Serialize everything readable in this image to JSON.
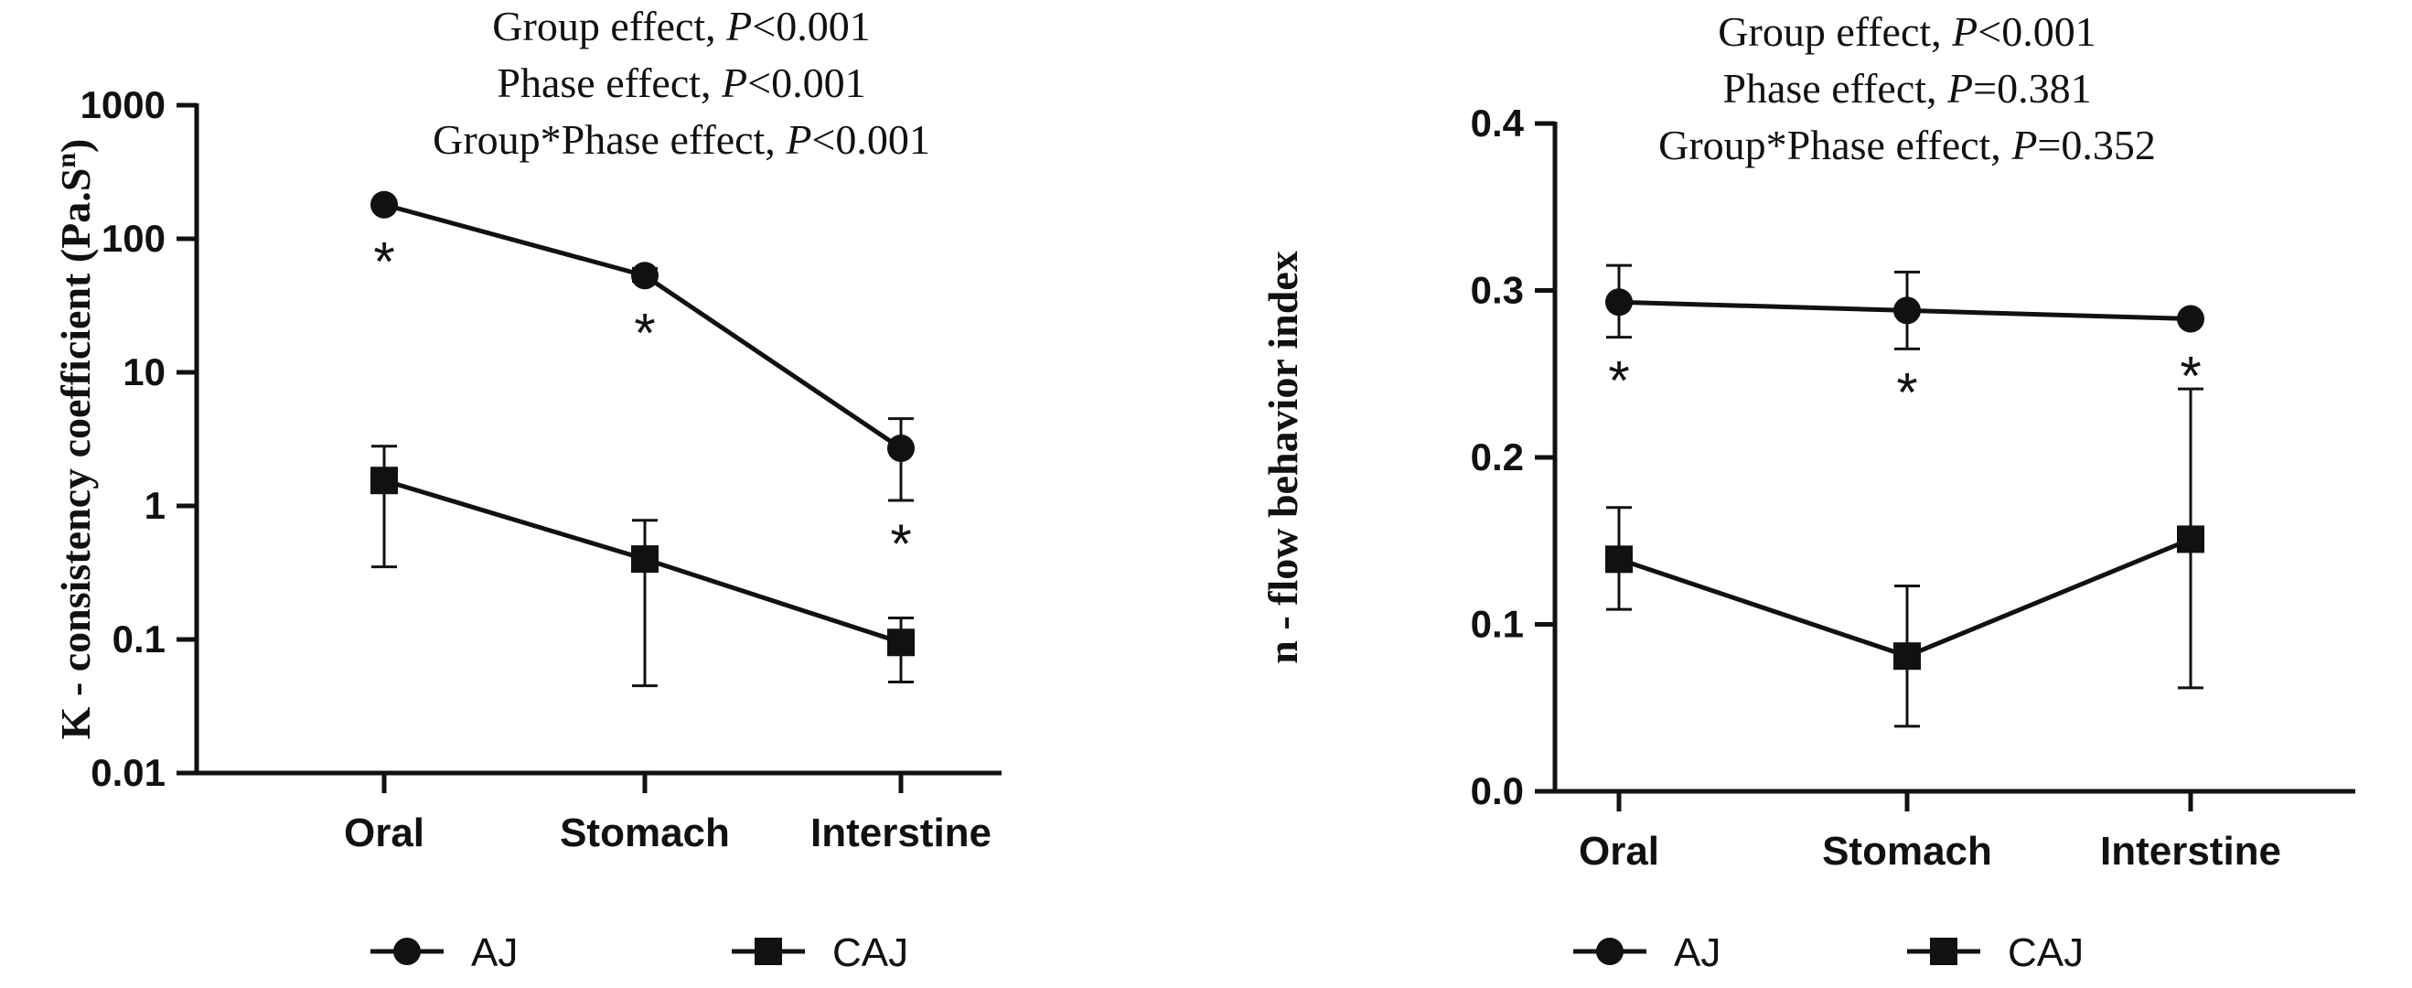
{
  "chart_data": [
    {
      "type": "line",
      "scale": "log",
      "ylabel_main": "K - consistency coefficient (Pa.S",
      "ylabel_sup": "n",
      "ylabel_close": ")",
      "categories": [
        "Oral",
        "Stomach",
        "Interstine"
      ],
      "yticks": [
        0.01,
        0.1,
        1,
        10,
        100,
        1000
      ],
      "ytick_labels": [
        "0.01",
        "0.1",
        "1",
        "10",
        "100",
        "1000"
      ],
      "ylim": [
        0.01,
        1000
      ],
      "annotations": [
        {
          "prefix": "Group effect, ",
          "p": "P",
          "suffix": "<0.001"
        },
        {
          "prefix": "Phase effect, ",
          "p": "P",
          "suffix": "<0.001"
        },
        {
          "prefix": "Group*Phase effect, ",
          "p": "P",
          "suffix": "<0.001"
        }
      ],
      "series": [
        {
          "name": "AJ",
          "marker": "circle",
          "values": [
            180,
            53,
            2.7
          ],
          "err_low": [
            180,
            48,
            1.1
          ],
          "err_high": [
            180,
            60,
            4.5
          ],
          "stars": [
            true,
            true,
            true
          ]
        },
        {
          "name": "CAJ",
          "marker": "square",
          "values": [
            1.55,
            0.4,
            0.095
          ],
          "err_low": [
            0.35,
            0.045,
            0.048
          ],
          "err_high": [
            2.8,
            0.78,
            0.145
          ],
          "stars": [
            false,
            false,
            false
          ]
        }
      ],
      "star_symbol": "*"
    },
    {
      "type": "line",
      "scale": "linear",
      "ylabel_main": "n - flow behavior index",
      "ylabel_sup": "",
      "ylabel_close": "",
      "categories": [
        "Oral",
        "Stomach",
        "Interstine"
      ],
      "yticks": [
        0.0,
        0.1,
        0.2,
        0.3,
        0.4
      ],
      "ytick_labels": [
        "0.0",
        "0.1",
        "0.2",
        "0.3",
        "0.4"
      ],
      "ylim": [
        0.0,
        0.4
      ],
      "annotations": [
        {
          "prefix": "Group effect, ",
          "p": "P",
          "suffix": "<0.001"
        },
        {
          "prefix": "Phase effect, ",
          "p": "P",
          "suffix": "=0.381"
        },
        {
          "prefix": "Group*Phase effect, ",
          "p": "P",
          "suffix": "=0.352"
        }
      ],
      "series": [
        {
          "name": "AJ",
          "marker": "circle",
          "values": [
            0.293,
            0.288,
            0.283
          ],
          "err_low": [
            0.272,
            0.265,
            0.283
          ],
          "err_high": [
            0.315,
            0.311,
            0.283
          ],
          "stars": [
            true,
            true,
            true
          ]
        },
        {
          "name": "CAJ",
          "marker": "square",
          "values": [
            0.139,
            0.081,
            0.151
          ],
          "err_low": [
            0.109,
            0.039,
            0.062
          ],
          "err_high": [
            0.17,
            0.123,
            0.241
          ],
          "stars": [
            false,
            false,
            false
          ]
        }
      ],
      "star_symbol": "*"
    }
  ],
  "legend": [
    {
      "label": "AJ",
      "marker": "circle"
    },
    {
      "label": "CAJ",
      "marker": "square"
    }
  ]
}
